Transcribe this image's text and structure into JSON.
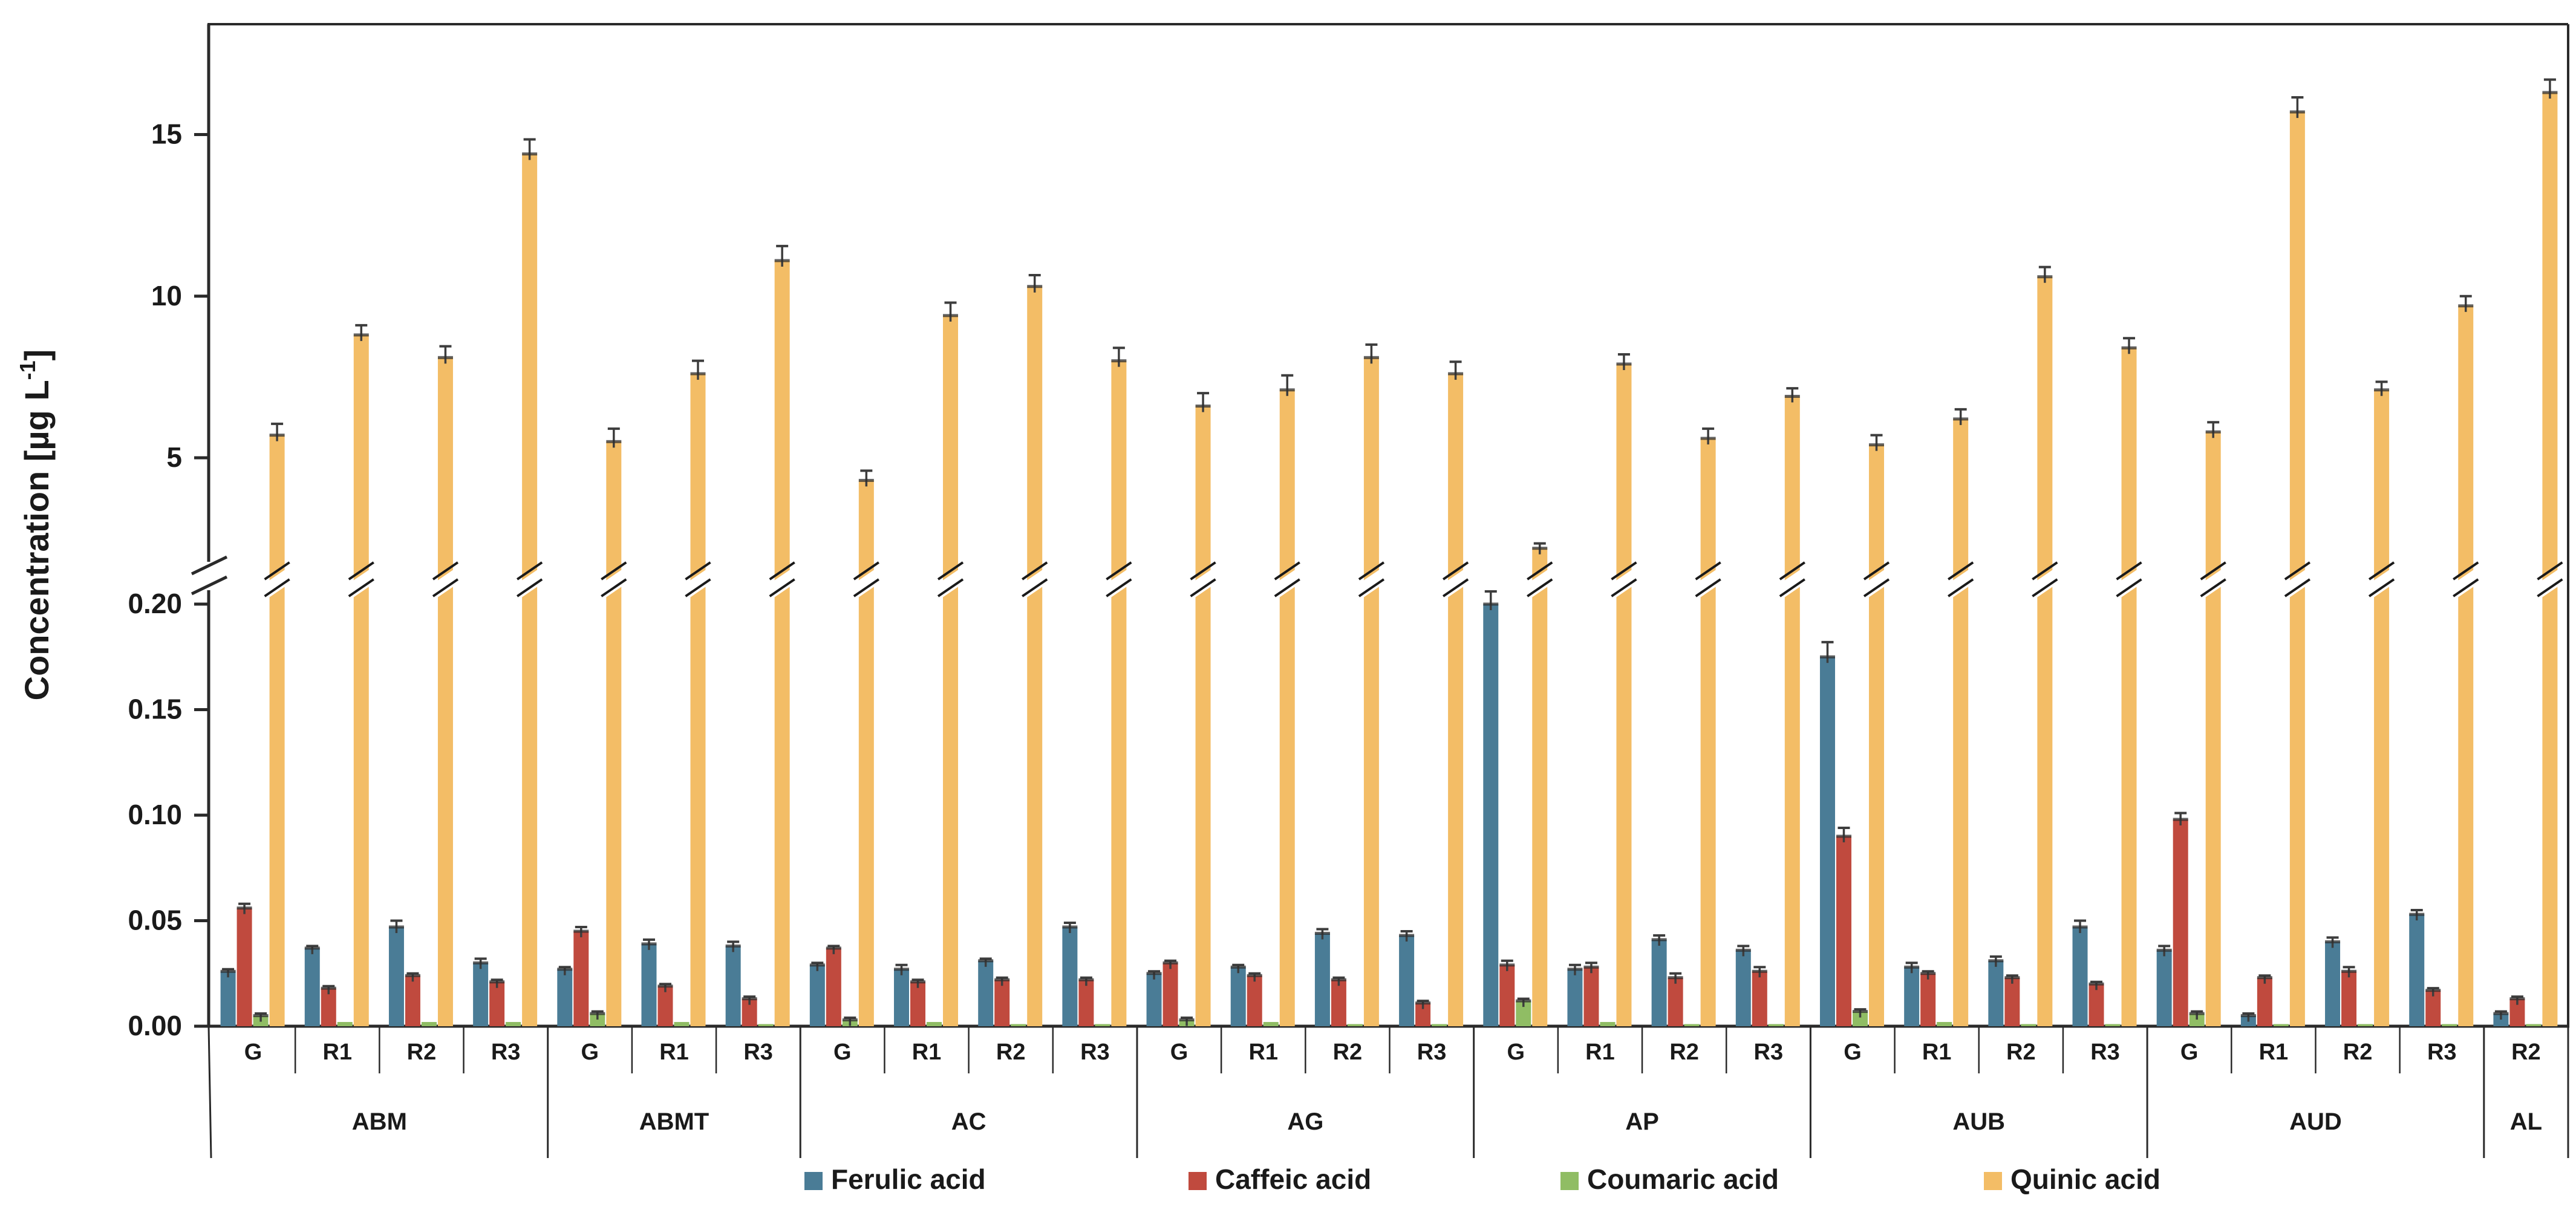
{
  "chart_data": {
    "type": "bar",
    "title": "",
    "ylabel": "Concentration [µg L⁻¹]",
    "ylabel_main": "Concentration [µg L",
    "ylabel_sup": "-1",
    "ylabel_end": "]",
    "axis": {
      "broken": true,
      "upper_ticks": [
        {
          "v": 5,
          "label": "5"
        },
        {
          "v": 10,
          "label": "10"
        },
        {
          "v": 15,
          "label": "15"
        }
      ],
      "lower_ticks": [
        {
          "v": 0,
          "label": "0.00"
        },
        {
          "v": 0.05,
          "label": "0.05"
        },
        {
          "v": 0.1,
          "label": "0.10"
        },
        {
          "v": 0.15,
          "label": "0.15"
        },
        {
          "v": 0.2,
          "label": "0.20"
        }
      ],
      "upper_range_top": 18.4,
      "lower_range_top": 0.215,
      "grid": false
    },
    "legend_position": "bottom",
    "groups": [
      {
        "name": "ABM",
        "subs": [
          "G",
          "R1",
          "R2",
          "R3"
        ]
      },
      {
        "name": "ABMT",
        "subs": [
          "G",
          "R1",
          "R3"
        ]
      },
      {
        "name": "AC",
        "subs": [
          "G",
          "R1",
          "R2",
          "R3"
        ]
      },
      {
        "name": "AG",
        "subs": [
          "G",
          "R1",
          "R2",
          "R3"
        ]
      },
      {
        "name": "AP",
        "subs": [
          "G",
          "R1",
          "R2",
          "R3"
        ]
      },
      {
        "name": "AUB",
        "subs": [
          "G",
          "R1",
          "R2",
          "R3"
        ]
      },
      {
        "name": "AUD",
        "subs": [
          "G",
          "R1",
          "R2",
          "R3"
        ]
      },
      {
        "name": "AL",
        "subs": [
          "R2"
        ]
      }
    ],
    "series": [
      {
        "name": "Ferulic acid",
        "color": "#4a7c96",
        "scale": "lower",
        "values": [
          0.026,
          0.037,
          0.047,
          0.03,
          0.027,
          0.039,
          0.038,
          0.029,
          0.027,
          0.031,
          0.047,
          0.025,
          0.028,
          0.044,
          0.043,
          0.2,
          0.027,
          0.041,
          0.036,
          0.175,
          0.028,
          0.031,
          0.047,
          0.036,
          0.005,
          0.04,
          0.053,
          0.006
        ],
        "errors": [
          0.001,
          0.001,
          0.003,
          0.002,
          0.001,
          0.002,
          0.002,
          0.001,
          0.002,
          0.001,
          0.002,
          0.001,
          0.001,
          0.002,
          0.002,
          0.006,
          0.002,
          0.002,
          0.002,
          0.007,
          0.002,
          0.002,
          0.003,
          0.002,
          0.001,
          0.002,
          0.002,
          0.001
        ]
      },
      {
        "name": "Caffeic acid",
        "color": "#c04a3e",
        "scale": "lower",
        "values": [
          0.056,
          0.018,
          0.024,
          0.021,
          0.045,
          0.019,
          0.013,
          0.037,
          0.021,
          0.022,
          0.022,
          0.03,
          0.024,
          0.022,
          0.011,
          0.029,
          0.028,
          0.023,
          0.026,
          0.09,
          0.025,
          0.023,
          0.02,
          0.098,
          0.023,
          0.026,
          0.017,
          0.013
        ],
        "errors": [
          0.002,
          0.001,
          0.001,
          0.001,
          0.002,
          0.001,
          0.001,
          0.001,
          0.001,
          0.001,
          0.001,
          0.001,
          0.001,
          0.001,
          0.001,
          0.002,
          0.002,
          0.002,
          0.002,
          0.004,
          0.001,
          0.001,
          0.001,
          0.003,
          0.001,
          0.002,
          0.001,
          0.001
        ]
      },
      {
        "name": "Coumaric acid",
        "color": "#90bd64",
        "scale": "lower",
        "values": [
          0.005,
          0.002,
          0.002,
          0.002,
          0.006,
          0.002,
          0.001,
          0.003,
          0.002,
          0.001,
          0.001,
          0.003,
          0.002,
          0.001,
          0.001,
          0.012,
          0.002,
          0.001,
          0.001,
          0.007,
          0.002,
          0.001,
          0.001,
          0.006,
          0.001,
          0.001,
          0.001,
          0.001
        ],
        "errors": [
          0.001,
          0,
          0,
          0,
          0.001,
          0,
          0,
          0.001,
          0,
          0,
          0,
          0.001,
          0,
          0,
          0,
          0.001,
          0,
          0,
          0,
          0.001,
          0,
          0,
          0,
          0.001,
          0,
          0,
          0,
          0
        ]
      },
      {
        "name": "Quinic acid",
        "color": "#f3bd66",
        "scale": "upper",
        "values": [
          5.7,
          8.8,
          8.1,
          14.4,
          5.5,
          7.6,
          11.1,
          4.3,
          9.4,
          10.3,
          8.0,
          6.6,
          7.1,
          8.1,
          7.6,
          2.2,
          7.9,
          5.6,
          6.9,
          5.4,
          6.2,
          10.6,
          8.4,
          5.8,
          15.7,
          7.1,
          9.7,
          16.3
        ],
        "errors": [
          0.35,
          0.3,
          0.35,
          0.45,
          0.4,
          0.4,
          0.45,
          0.3,
          0.4,
          0.35,
          0.4,
          0.4,
          0.45,
          0.4,
          0.37,
          0.15,
          0.3,
          0.3,
          0.25,
          0.3,
          0.3,
          0.3,
          0.3,
          0.3,
          0.45,
          0.25,
          0.3,
          0.4
        ]
      }
    ],
    "error_bar_color": "#3d3d3d",
    "frame_color": "#2a2a2a"
  }
}
